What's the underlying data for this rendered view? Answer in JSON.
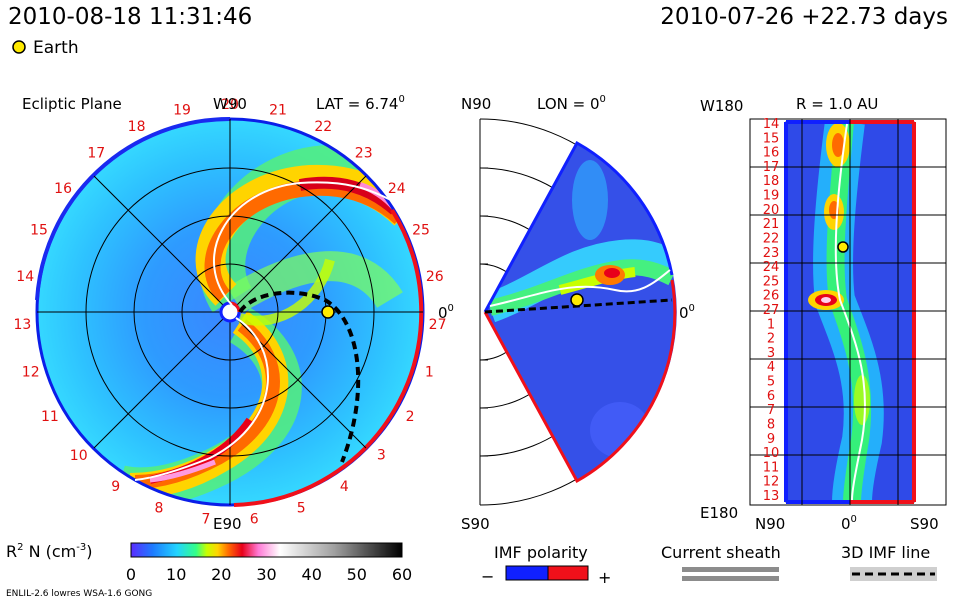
{
  "header": {
    "timestamp": "2010-08-18 11:31:46",
    "run_date": "2010-07-26 +22.73 days"
  },
  "legend": {
    "earth": "Earth"
  },
  "panels": {
    "ecliptic": {
      "title": "Ecliptic Plane",
      "top_label": "W90",
      "bottom_label": "E90",
      "lat_label": "LAT = 6.74",
      "lat_deg": "0",
      "zero_label": "0",
      "zero_deg": "0"
    },
    "meridional": {
      "top_label": "N90",
      "bottom_label": "S90",
      "lon_label": "LON = 0",
      "lon_deg": "0",
      "zero_label": "0",
      "zero_deg": "0"
    },
    "radial": {
      "top_label": "W180",
      "bottom_label": "E180",
      "r_label": "R = 1.0 AU",
      "left_label": "N90",
      "mid_label": "0",
      "mid_deg": "0",
      "right_label": "S90"
    }
  },
  "carrington_days": [
    "20",
    "21",
    "22",
    "23",
    "24",
    "25",
    "26",
    "27",
    "1",
    "2",
    "3",
    "4",
    "5",
    "6",
    "7",
    "8",
    "9",
    "10",
    "11",
    "12",
    "13",
    "14",
    "15",
    "16",
    "17",
    "18",
    "19"
  ],
  "radial_days": [
    "14",
    "15",
    "16",
    "17",
    "18",
    "19",
    "20",
    "21",
    "22",
    "23",
    "24",
    "25",
    "26",
    "27",
    "1",
    "2",
    "3",
    "4",
    "5",
    "6",
    "7",
    "8",
    "9",
    "10",
    "11",
    "12",
    "13"
  ],
  "colorbar": {
    "label": "R",
    "label_sup": "2",
    "label_rest": " N (cm",
    "label_exp": "-3",
    "label_close": ")",
    "ticks": [
      "0",
      "10",
      "20",
      "30",
      "40",
      "50",
      "60"
    ],
    "colors": [
      "#5a2cff",
      "#1e7bff",
      "#22d4ff",
      "#33ff88",
      "#c8ff00",
      "#ffd400",
      "#ff6a00",
      "#e8001a",
      "#ff7bd6",
      "#ffffff",
      "#a0a0a0",
      "#000000"
    ]
  },
  "keys": {
    "imf_polarity": "IMF polarity",
    "minus": "−",
    "plus": "+",
    "current_sheath": "Current sheath",
    "imf_line": "3D IMF line"
  },
  "footer": {
    "model": "ENLIL-2.6 lowres WSA-1.6 GONG"
  }
}
